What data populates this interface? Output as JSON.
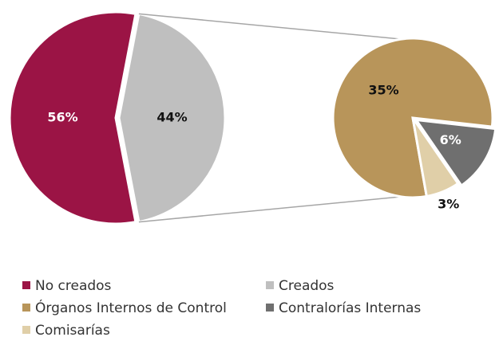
{
  "chart_data": {
    "type": "pie",
    "categories": [
      "No creados",
      "Creados"
    ],
    "values": [
      56,
      44
    ],
    "value_labels": [
      "56%",
      "44%"
    ],
    "colors": [
      "#9b1445",
      "#bfbfbf"
    ],
    "breakdown": {
      "categories": [
        "Órganos Internos de Control",
        "Contralorías Internas",
        "Comisarías"
      ],
      "values": [
        35,
        6,
        3
      ],
      "value_labels": [
        "35%",
        "6%",
        "3%"
      ],
      "colors": [
        "#b8955a",
        "#6f6f6f",
        "#e0cfa8"
      ]
    }
  }
}
